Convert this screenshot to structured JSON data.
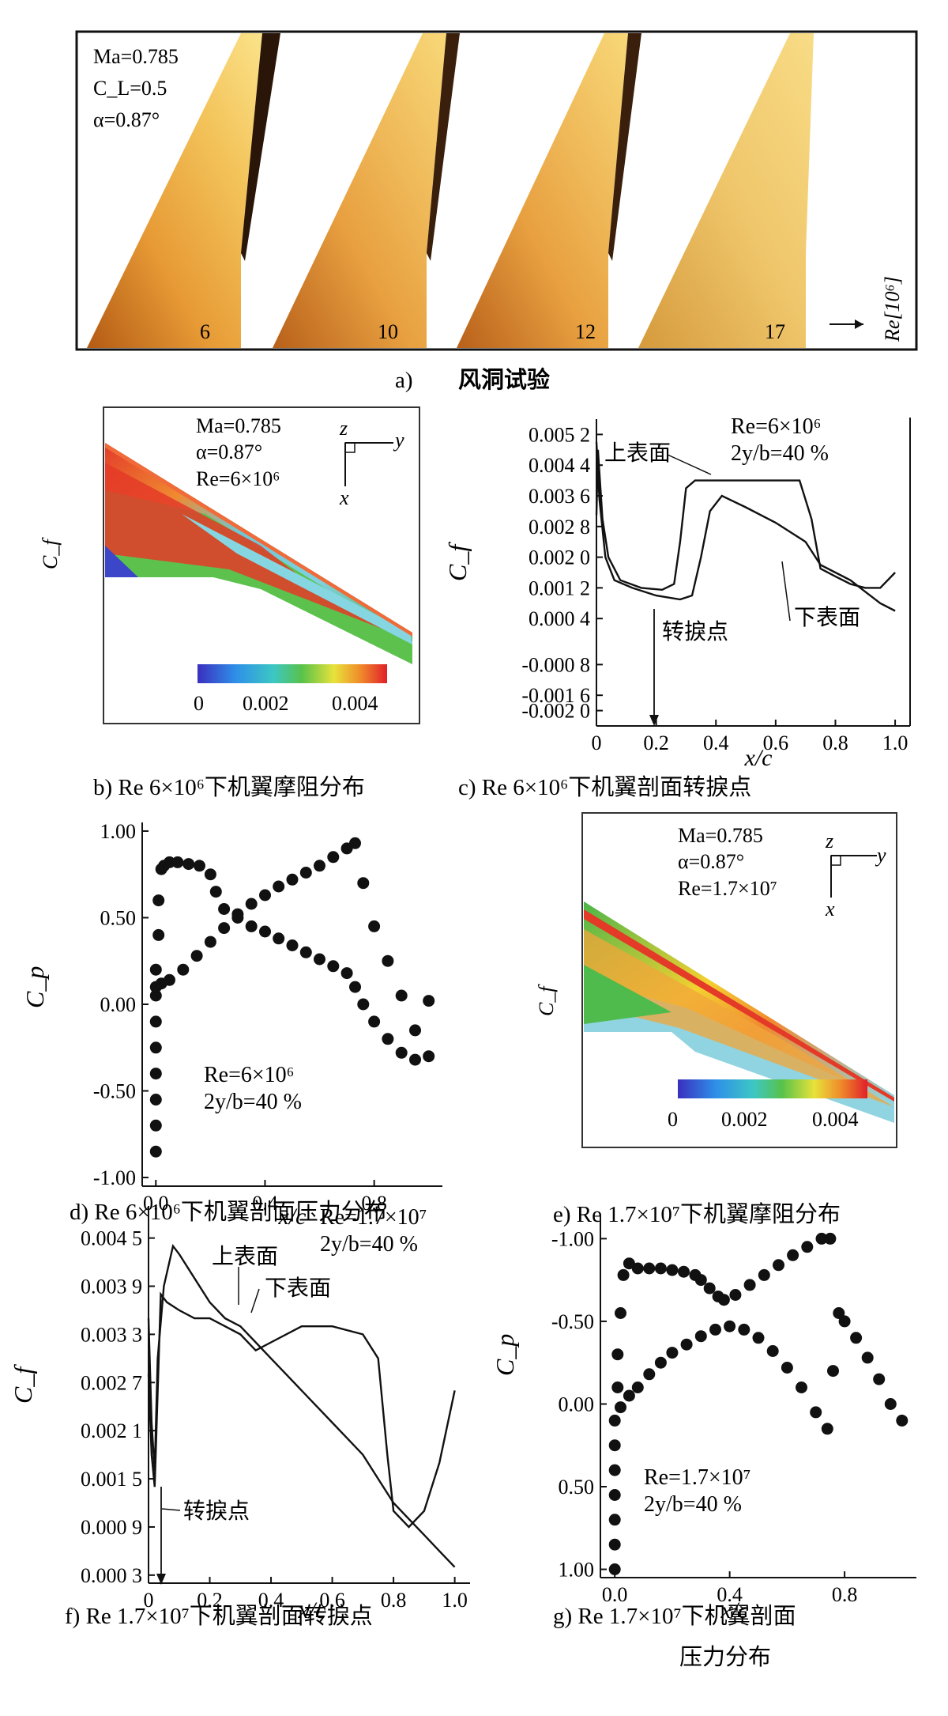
{
  "panel_a": {
    "params": [
      "Ma=0.785",
      "C_L=0.5",
      "α=0.87°"
    ],
    "re_values": [
      "6",
      "10",
      "12",
      "17"
    ],
    "axis_label": "Re[10⁶]",
    "caption_letter": "a)",
    "caption_text": "风洞试验"
  },
  "panel_b": {
    "params": [
      "Ma=0.785",
      "α=0.87°",
      "Re=6×10⁶"
    ],
    "axes": [
      "z",
      "y",
      "x"
    ],
    "ylabel": "C_f",
    "colorbar_ticks": [
      "0",
      "0.002",
      "0.004"
    ],
    "caption": "b) Re 6×10⁶下机翼摩阻分布"
  },
  "panel_e": {
    "params": [
      "Ma=0.785",
      "α=0.87°",
      "Re=1.7×10⁷"
    ],
    "axes": [
      "z",
      "y",
      "x"
    ],
    "ylabel": "C_f",
    "colorbar_ticks": [
      "0",
      "0.002",
      "0.004"
    ],
    "caption": "e) Re 1.7×10⁷下机翼摩阻分布"
  },
  "chart_data": [
    {
      "id": "c",
      "type": "line",
      "title": "",
      "xlabel": "x/c",
      "ylabel": "C_f",
      "xlim": [
        0,
        1.05
      ],
      "ylim": [
        -0.0024,
        0.0056
      ],
      "x_ticks": [
        "0",
        "0.2",
        "0.4",
        "0.6",
        "0.8",
        "1.0"
      ],
      "y_ticks": [
        "0.005 2",
        "0.004 4",
        "0.003 6",
        "0.002 8",
        "0.002 0",
        "0.001 2",
        "0.000 4",
        "-0.000 8",
        "-0.001 6",
        "-0.002 0"
      ],
      "legend_text": [
        "Re=6×10⁶",
        "2y/b=40 %"
      ],
      "annotations": [
        "上表面",
        "下表面",
        "转捩点"
      ],
      "series": [
        {
          "name": "上表面",
          "x": [
            0.0,
            0.005,
            0.01,
            0.02,
            0.04,
            0.08,
            0.15,
            0.22,
            0.26,
            0.28,
            0.3,
            0.33,
            0.4,
            0.5,
            0.6,
            0.68,
            0.72,
            0.75,
            0.8,
            0.85,
            0.9,
            0.95,
            1.0
          ],
          "y": [
            0.0031,
            0.0048,
            0.0042,
            0.003,
            0.002,
            0.0014,
            0.0012,
            0.00115,
            0.0013,
            0.0024,
            0.0038,
            0.004,
            0.004,
            0.004,
            0.004,
            0.004,
            0.003,
            0.0017,
            0.0015,
            0.0013,
            0.0012,
            0.0012,
            0.0016
          ]
        },
        {
          "name": "下表面",
          "x": [
            0.0,
            0.01,
            0.03,
            0.06,
            0.12,
            0.2,
            0.28,
            0.32,
            0.35,
            0.38,
            0.42,
            0.5,
            0.6,
            0.7,
            0.75,
            0.8,
            0.85,
            0.9,
            0.95,
            1.0
          ],
          "y": [
            0.005,
            0.0035,
            0.002,
            0.0014,
            0.0012,
            0.001,
            0.0009,
            0.001,
            0.002,
            0.0032,
            0.0036,
            0.0033,
            0.0029,
            0.0024,
            0.0018,
            0.0016,
            0.0014,
            0.0011,
            0.0008,
            0.0006
          ]
        }
      ]
    },
    {
      "id": "d",
      "type": "scatter",
      "title": "",
      "xlabel": "x/c",
      "ylabel": "C_p",
      "xlim": [
        -0.05,
        1.05
      ],
      "ylim": [
        -1.05,
        1.05
      ],
      "x_ticks": [
        "0.0",
        "0.4",
        "0.8"
      ],
      "y_ticks": [
        "1.00",
        "0.50",
        "0.00",
        "-0.50",
        "-1.00"
      ],
      "legend_text": [
        "Re=6×10⁶",
        "2y/b=40 %"
      ],
      "series": [
        {
          "name": "upper",
          "x": [
            0.0,
            0.0,
            0.0,
            0.0,
            0.0,
            0.0,
            0.0,
            0.0,
            0.01,
            0.01,
            0.02,
            0.03,
            0.05,
            0.08,
            0.12,
            0.16,
            0.2,
            0.22,
            0.25,
            0.3,
            0.35,
            0.4,
            0.45,
            0.5,
            0.55,
            0.6,
            0.65,
            0.7,
            0.73,
            0.76,
            0.8,
            0.85,
            0.9,
            0.95,
            1.0
          ],
          "y": [
            -0.85,
            -0.7,
            -0.55,
            -0.4,
            -0.25,
            -0.1,
            0.05,
            0.2,
            0.4,
            0.6,
            0.78,
            0.8,
            0.82,
            0.82,
            0.81,
            0.8,
            0.75,
            0.65,
            0.55,
            0.5,
            0.45,
            0.42,
            0.38,
            0.34,
            0.3,
            0.26,
            0.22,
            0.18,
            0.1,
            0.0,
            -0.1,
            -0.2,
            -0.28,
            -0.32,
            -0.3
          ]
        },
        {
          "name": "lower",
          "x": [
            0.0,
            0.02,
            0.05,
            0.1,
            0.15,
            0.2,
            0.25,
            0.3,
            0.35,
            0.4,
            0.45,
            0.5,
            0.55,
            0.6,
            0.65,
            0.7,
            0.73,
            0.76,
            0.8,
            0.85,
            0.9,
            0.95,
            1.0
          ],
          "y": [
            0.1,
            0.12,
            0.14,
            0.2,
            0.28,
            0.36,
            0.44,
            0.52,
            0.58,
            0.63,
            0.68,
            0.72,
            0.76,
            0.8,
            0.85,
            0.9,
            0.93,
            0.7,
            0.45,
            0.25,
            0.05,
            -0.15,
            0.02
          ]
        }
      ]
    },
    {
      "id": "f",
      "type": "line",
      "title": "",
      "xlabel": "x/c",
      "ylabel": "C_f",
      "xlim": [
        0,
        1.05
      ],
      "ylim": [
        0.0002,
        0.0049
      ],
      "x_ticks": [
        "0",
        "0.2",
        "0.4",
        "0.6",
        "0.8",
        "1.0"
      ],
      "y_ticks": [
        "0.004 5",
        "0.003 9",
        "0.003 3",
        "0.002 7",
        "0.002 1",
        "0.001 5",
        "0.000 9",
        "0.000 3"
      ],
      "legend_text": [
        "Re=1.7×10⁷",
        "2y/b=40 %"
      ],
      "annotations": [
        "上表面",
        "下表面",
        "转捩点"
      ],
      "series": [
        {
          "name": "上表面",
          "x": [
            0.0,
            0.01,
            0.02,
            0.03,
            0.05,
            0.08,
            0.1,
            0.15,
            0.2,
            0.25,
            0.3,
            0.35,
            0.4,
            0.45,
            0.5,
            0.55,
            0.6,
            0.65,
            0.7,
            0.75,
            0.8,
            0.85,
            0.9,
            0.95,
            1.0
          ],
          "y": [
            0.0035,
            0.0022,
            0.0016,
            0.003,
            0.0039,
            0.0044,
            0.0043,
            0.004,
            0.0037,
            0.0035,
            0.0034,
            0.0032,
            0.003,
            0.0028,
            0.0026,
            0.0024,
            0.0022,
            0.002,
            0.0018,
            0.0015,
            0.0012,
            0.001,
            0.0008,
            0.0006,
            0.0004
          ]
        },
        {
          "name": "下表面",
          "x": [
            0.0,
            0.01,
            0.02,
            0.04,
            0.06,
            0.1,
            0.15,
            0.2,
            0.25,
            0.3,
            0.35,
            0.4,
            0.5,
            0.6,
            0.7,
            0.75,
            0.78,
            0.8,
            0.85,
            0.9,
            0.95,
            1.0
          ],
          "y": [
            0.0028,
            0.0018,
            0.0014,
            0.0038,
            0.0037,
            0.0036,
            0.0035,
            0.0035,
            0.0034,
            0.0033,
            0.0031,
            0.0032,
            0.0034,
            0.0034,
            0.0033,
            0.003,
            0.0018,
            0.0011,
            0.0009,
            0.0011,
            0.0017,
            0.0026
          ]
        }
      ]
    },
    {
      "id": "g",
      "type": "scatter",
      "title": "",
      "xlabel": "x/c",
      "ylabel": "C_p",
      "xlim": [
        -0.05,
        1.05
      ],
      "ylim": [
        -1.15,
        1.05
      ],
      "y_inverted": true,
      "x_ticks": [
        "0.0",
        "0.4",
        "0.8"
      ],
      "y_ticks": [
        "-1.00",
        "-0.50",
        "0.00",
        "0.50",
        "1.00"
      ],
      "legend_text": [
        "Re=1.7×10⁷",
        "2y/b=40 %"
      ],
      "series": [
        {
          "name": "upper",
          "x": [
            0.0,
            0.0,
            0.0,
            0.0,
            0.0,
            0.0,
            0.0,
            0.01,
            0.01,
            0.02,
            0.03,
            0.05,
            0.08,
            0.12,
            0.16,
            0.2,
            0.24,
            0.28,
            0.3,
            0.33,
            0.36,
            0.38,
            0.42,
            0.47,
            0.52,
            0.57,
            0.62,
            0.67,
            0.72,
            0.75
          ],
          "y": [
            1.0,
            0.85,
            0.7,
            0.55,
            0.4,
            0.25,
            0.1,
            -0.1,
            -0.3,
            -0.55,
            -0.78,
            -0.85,
            -0.82,
            -0.82,
            -0.82,
            -0.81,
            -0.8,
            -0.78,
            -0.75,
            -0.7,
            -0.65,
            -0.63,
            -0.66,
            -0.72,
            -0.78,
            -0.84,
            -0.9,
            -0.95,
            -1.0,
            -1.0
          ]
        },
        {
          "name": "lower",
          "x": [
            0.02,
            0.05,
            0.08,
            0.12,
            0.16,
            0.2,
            0.25,
            0.3,
            0.35,
            0.4,
            0.45,
            0.5,
            0.55,
            0.6,
            0.65,
            0.7,
            0.74,
            0.76,
            0.78,
            0.8,
            0.84,
            0.88,
            0.92,
            0.96,
            1.0
          ],
          "y": [
            0.02,
            -0.05,
            -0.1,
            -0.18,
            -0.25,
            -0.31,
            -0.36,
            -0.41,
            -0.45,
            -0.47,
            -0.45,
            -0.4,
            -0.32,
            -0.22,
            -0.1,
            0.05,
            0.15,
            -0.2,
            -0.55,
            -0.5,
            -0.4,
            -0.28,
            -0.15,
            0.0,
            0.1
          ]
        }
      ]
    }
  ],
  "captions": {
    "c": "c) Re 6×10⁶下机翼剖面转捩点",
    "d": "d) Re 6×10⁶下机翼剖面压力分布",
    "f": "f) Re 1.7×10⁷下机翼剖面转捩点",
    "g1": "g) Re 1.7×10⁷下机翼剖面",
    "g2": "压力分布"
  }
}
